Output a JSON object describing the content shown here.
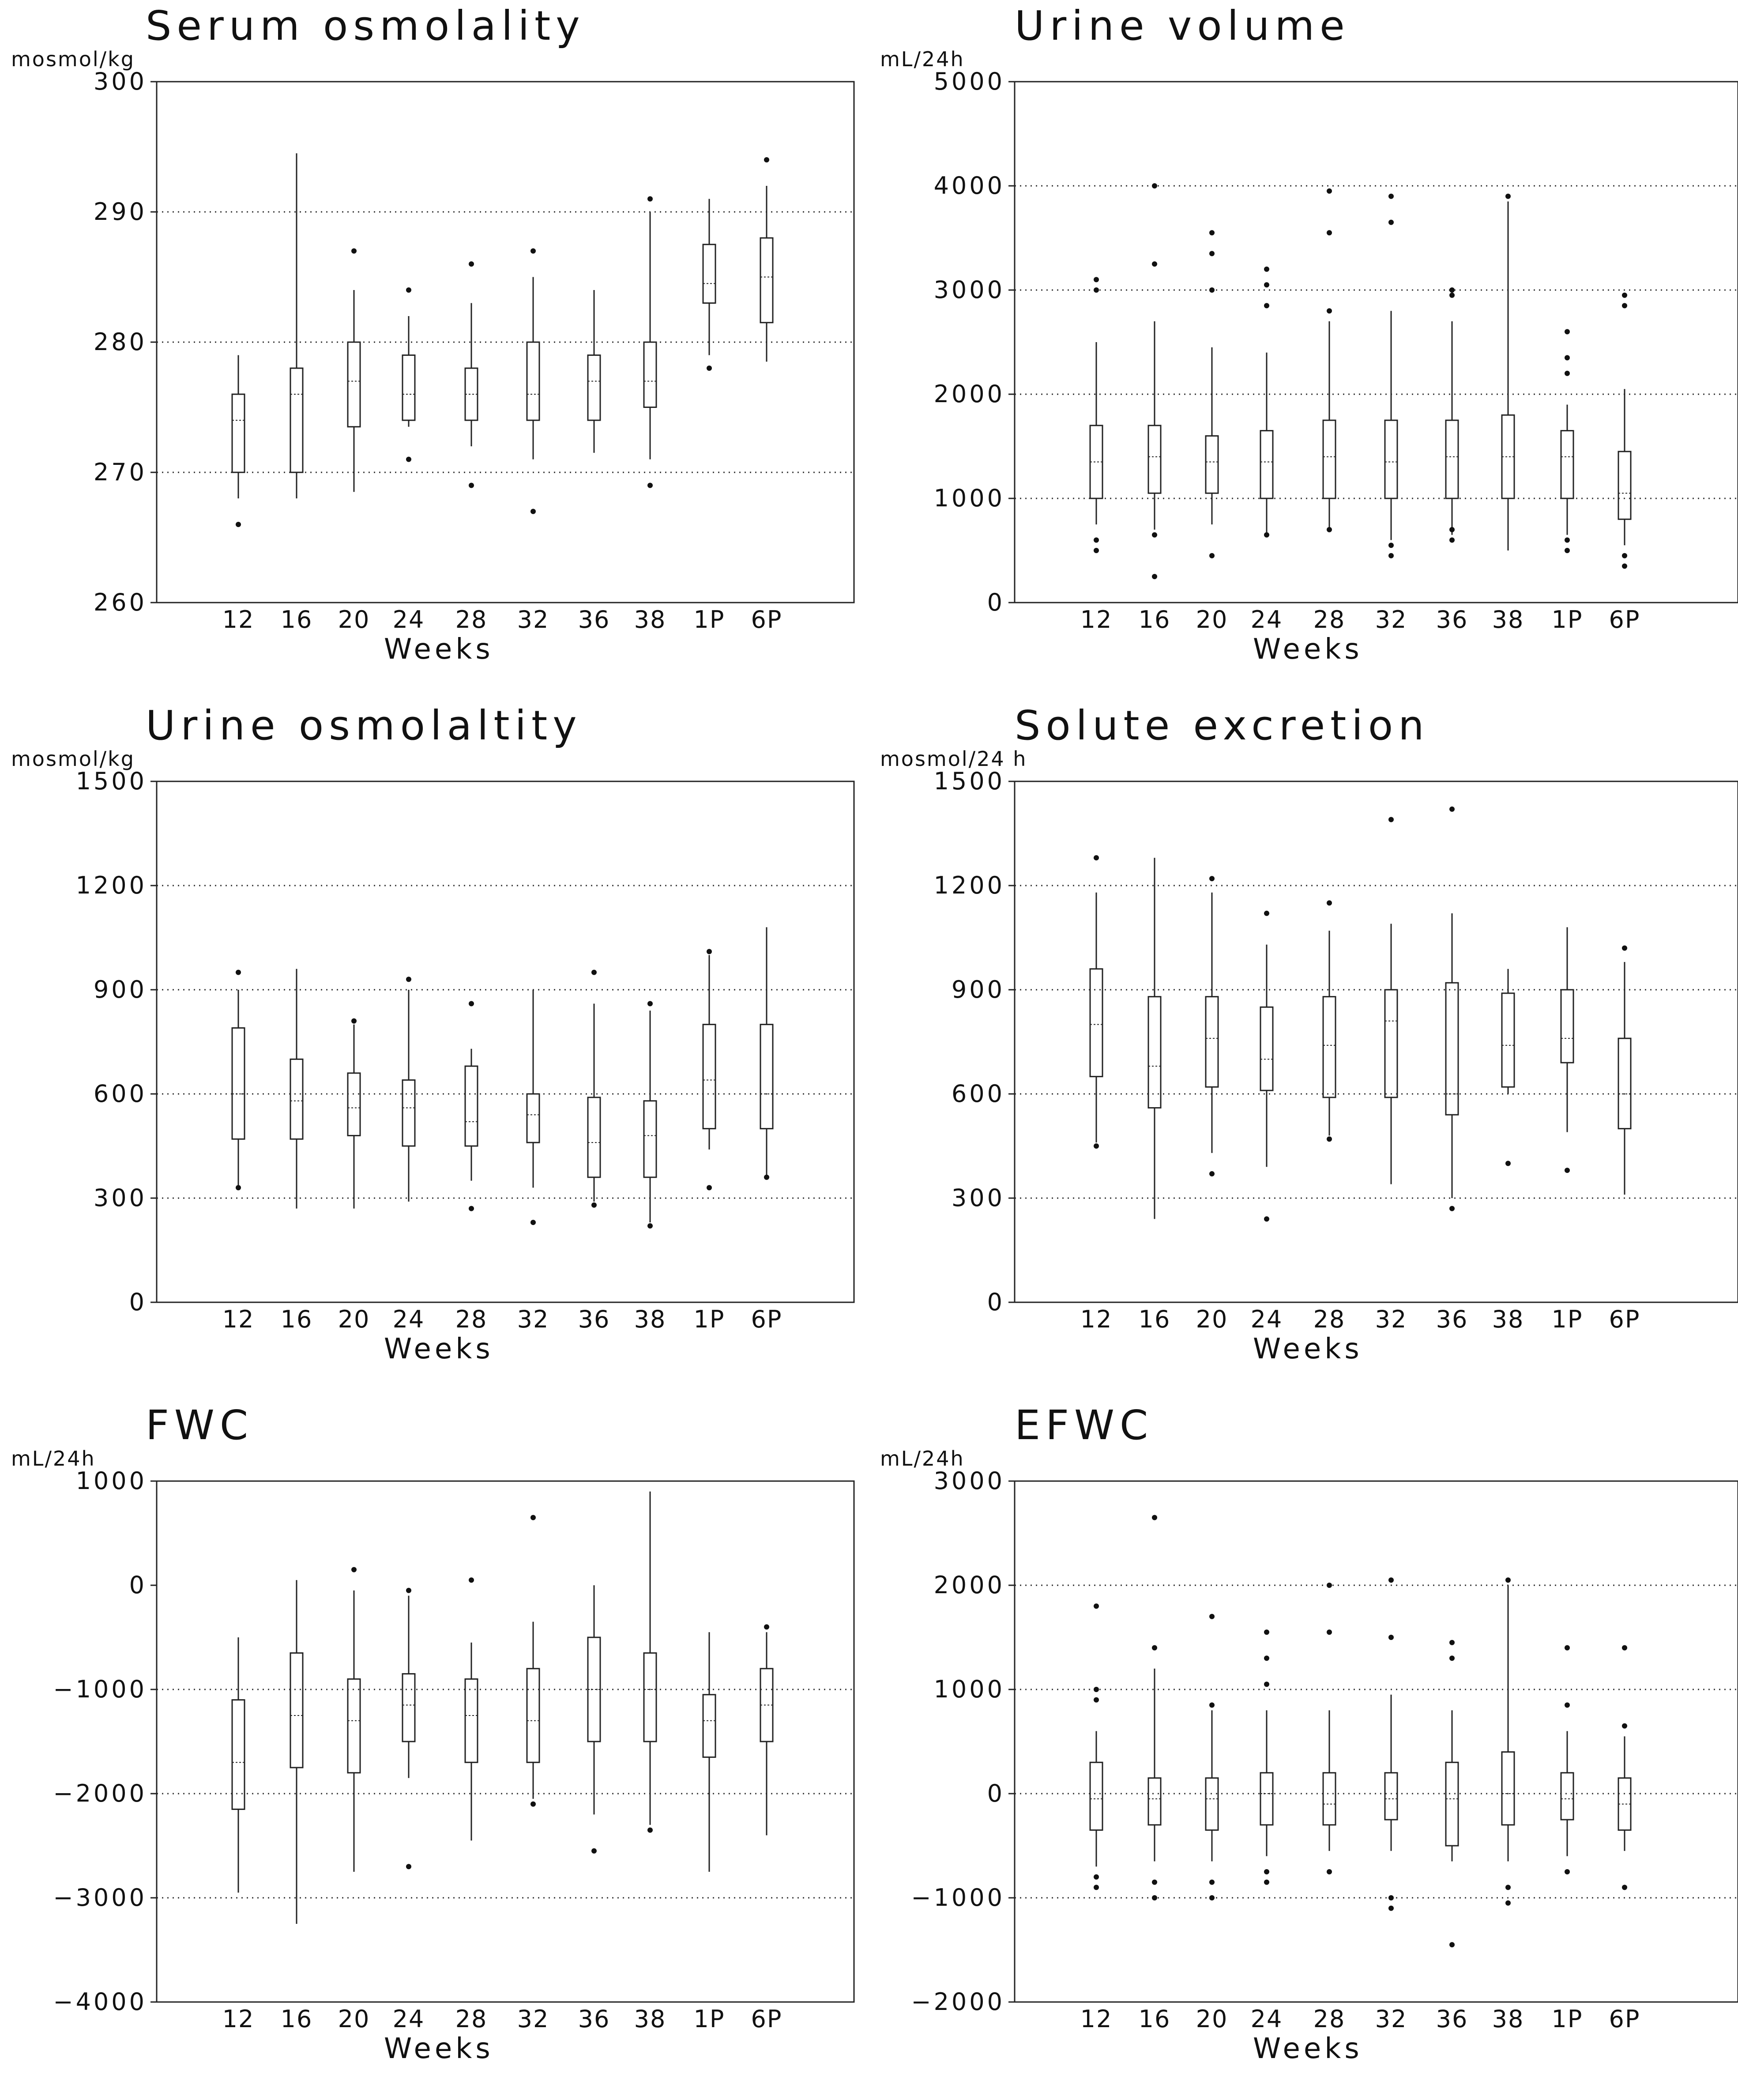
{
  "figure": {
    "x_axis_label": "Weeks",
    "categories": [
      "12",
      "16",
      "20",
      "24",
      "28",
      "32",
      "36",
      "38",
      "1P",
      "6P"
    ]
  },
  "chart_data": [
    {
      "type": "box",
      "title": "Serum osmolality",
      "ylabel": "mosmol/kg",
      "xlabel": "Weeks",
      "categories": [
        "12",
        "16",
        "20",
        "24",
        "28",
        "32",
        "36",
        "38",
        "1P",
        "6P"
      ],
      "ylim": [
        260,
        300
      ],
      "yticks": [
        260,
        270,
        280,
        290,
        300
      ],
      "reference_lines": [
        270,
        280,
        290
      ],
      "boxes": [
        {
          "low": 268,
          "q1": 270,
          "median": 274,
          "q3": 276,
          "high": 279,
          "outliers": [
            266
          ]
        },
        {
          "low": 268,
          "q1": 270,
          "median": 276,
          "q3": 278,
          "high": 294.5,
          "outliers": []
        },
        {
          "low": 268.5,
          "q1": 273.5,
          "median": 277,
          "q3": 280,
          "high": 284,
          "outliers": [
            287
          ]
        },
        {
          "low": 273.5,
          "q1": 274,
          "median": 276,
          "q3": 279,
          "high": 282,
          "outliers": [
            271,
            284
          ]
        },
        {
          "low": 272,
          "q1": 274,
          "median": 276,
          "q3": 278,
          "high": 283,
          "outliers": [
            269,
            286
          ]
        },
        {
          "low": 271,
          "q1": 274,
          "median": 276,
          "q3": 280,
          "high": 285,
          "outliers": [
            267,
            287
          ]
        },
        {
          "low": 271.5,
          "q1": 274,
          "median": 277,
          "q3": 279,
          "high": 284,
          "outliers": []
        },
        {
          "low": 271,
          "q1": 275,
          "median": 277,
          "q3": 280,
          "high": 290,
          "outliers": [
            269,
            291
          ]
        },
        {
          "low": 279,
          "q1": 283,
          "median": 284.5,
          "q3": 287.5,
          "high": 291,
          "outliers": [
            278
          ]
        },
        {
          "low": 278.5,
          "q1": 281.5,
          "median": 285,
          "q3": 288,
          "high": 292,
          "outliers": [
            294
          ]
        }
      ]
    },
    {
      "type": "box",
      "title": "Urine volume",
      "ylabel": "mL/24h",
      "xlabel": "Weeks",
      "categories": [
        "12",
        "16",
        "20",
        "24",
        "28",
        "32",
        "36",
        "38",
        "1P",
        "6P"
      ],
      "ylim": [
        0,
        5000
      ],
      "yticks": [
        0,
        1000,
        2000,
        3000,
        4000,
        5000
      ],
      "reference_lines": [
        1000,
        2000,
        3000,
        4000
      ],
      "boxes": [
        {
          "low": 750,
          "q1": 1000,
          "median": 1350,
          "q3": 1700,
          "high": 2500,
          "outliers": [
            500,
            600,
            3000,
            3100
          ]
        },
        {
          "low": 700,
          "q1": 1050,
          "median": 1400,
          "q3": 1700,
          "high": 2700,
          "outliers": [
            250,
            650,
            3250,
            4000
          ]
        },
        {
          "low": 750,
          "q1": 1050,
          "median": 1350,
          "q3": 1600,
          "high": 2450,
          "outliers": [
            450,
            3000,
            3350,
            3550
          ]
        },
        {
          "low": 650,
          "q1": 1000,
          "median": 1350,
          "q3": 1650,
          "high": 2400,
          "outliers": [
            650,
            2850,
            3050,
            3200
          ]
        },
        {
          "low": 700,
          "q1": 1000,
          "median": 1400,
          "q3": 1750,
          "high": 2700,
          "outliers": [
            700,
            2800,
            3550,
            3950
          ]
        },
        {
          "low": 600,
          "q1": 1000,
          "median": 1350,
          "q3": 1750,
          "high": 2800,
          "outliers": [
            450,
            550,
            3650,
            3900
          ]
        },
        {
          "low": 650,
          "q1": 1000,
          "median": 1400,
          "q3": 1750,
          "high": 2700,
          "outliers": [
            600,
            700,
            2950,
            3000
          ]
        },
        {
          "low": 500,
          "q1": 1000,
          "median": 1400,
          "q3": 1800,
          "high": 3850,
          "outliers": [
            3900
          ]
        },
        {
          "low": 650,
          "q1": 1000,
          "median": 1400,
          "q3": 1650,
          "high": 1900,
          "outliers": [
            500,
            600,
            2200,
            2350,
            2600
          ]
        },
        {
          "low": 550,
          "q1": 800,
          "median": 1050,
          "q3": 1450,
          "high": 2050,
          "outliers": [
            350,
            450,
            2850,
            2950
          ]
        }
      ]
    },
    {
      "type": "box",
      "title": "Urine osmolaltity",
      "ylabel": "mosmol/kg",
      "xlabel": "Weeks",
      "categories": [
        "12",
        "16",
        "20",
        "24",
        "28",
        "32",
        "36",
        "38",
        "1P",
        "6P"
      ],
      "ylim": [
        0,
        1500
      ],
      "yticks": [
        0,
        300,
        600,
        900,
        1200,
        1500
      ],
      "reference_lines": [
        300,
        600,
        900,
        1200
      ],
      "boxes": [
        {
          "low": 330,
          "q1": 470,
          "median": 600,
          "q3": 790,
          "high": 900,
          "outliers": [
            330,
            950
          ]
        },
        {
          "low": 270,
          "q1": 470,
          "median": 580,
          "q3": 700,
          "high": 960,
          "outliers": []
        },
        {
          "low": 270,
          "q1": 480,
          "median": 560,
          "q3": 660,
          "high": 800,
          "outliers": [
            810
          ]
        },
        {
          "low": 290,
          "q1": 450,
          "median": 560,
          "q3": 640,
          "high": 900,
          "outliers": [
            930
          ]
        },
        {
          "low": 350,
          "q1": 450,
          "median": 520,
          "q3": 680,
          "high": 730,
          "outliers": [
            270,
            860
          ]
        },
        {
          "low": 330,
          "q1": 460,
          "median": 540,
          "q3": 600,
          "high": 900,
          "outliers": [
            230
          ]
        },
        {
          "low": 290,
          "q1": 360,
          "median": 460,
          "q3": 590,
          "high": 860,
          "outliers": [
            280,
            950
          ]
        },
        {
          "low": 230,
          "q1": 360,
          "median": 480,
          "q3": 580,
          "high": 840,
          "outliers": [
            220,
            860
          ]
        },
        {
          "low": 440,
          "q1": 500,
          "median": 640,
          "q3": 800,
          "high": 1000,
          "outliers": [
            330,
            1010
          ]
        },
        {
          "low": 360,
          "q1": 500,
          "median": 600,
          "q3": 800,
          "high": 1080,
          "outliers": [
            360
          ]
        }
      ]
    },
    {
      "type": "box",
      "title": "Solute excretion",
      "ylabel": "mosmol/24 h",
      "xlabel": "Weeks",
      "categories": [
        "12",
        "16",
        "20",
        "24",
        "28",
        "32",
        "36",
        "38",
        "1P",
        "6P"
      ],
      "ylim": [
        0,
        1500
      ],
      "yticks": [
        0,
        300,
        600,
        900,
        1200,
        1500
      ],
      "reference_lines": [
        300,
        600,
        900,
        1200
      ],
      "boxes": [
        {
          "low": 460,
          "q1": 650,
          "median": 800,
          "q3": 960,
          "high": 1180,
          "outliers": [
            450,
            1280
          ]
        },
        {
          "low": 240,
          "q1": 560,
          "median": 680,
          "q3": 880,
          "high": 1280,
          "outliers": []
        },
        {
          "low": 430,
          "q1": 620,
          "median": 760,
          "q3": 880,
          "high": 1180,
          "outliers": [
            370,
            1220
          ]
        },
        {
          "low": 390,
          "q1": 610,
          "median": 700,
          "q3": 850,
          "high": 1030,
          "outliers": [
            240,
            1120
          ]
        },
        {
          "low": 480,
          "q1": 590,
          "median": 740,
          "q3": 880,
          "high": 1070,
          "outliers": [
            470,
            1150
          ]
        },
        {
          "low": 340,
          "q1": 590,
          "median": 810,
          "q3": 900,
          "high": 1090,
          "outliers": [
            1390
          ]
        },
        {
          "low": 300,
          "q1": 540,
          "median": 600,
          "q3": 920,
          "high": 1120,
          "outliers": [
            270,
            1420
          ]
        },
        {
          "low": 600,
          "q1": 620,
          "median": 740,
          "q3": 890,
          "high": 960,
          "outliers": [
            400
          ]
        },
        {
          "low": 490,
          "q1": 690,
          "median": 760,
          "q3": 900,
          "high": 1080,
          "outliers": [
            380
          ]
        },
        {
          "low": 310,
          "q1": 500,
          "median": 600,
          "q3": 760,
          "high": 980,
          "outliers": [
            1020
          ]
        }
      ]
    },
    {
      "type": "box",
      "title": "FWC",
      "ylabel": "mL/24h",
      "xlabel": "Weeks",
      "categories": [
        "12",
        "16",
        "20",
        "24",
        "28",
        "32",
        "36",
        "38",
        "1P",
        "6P"
      ],
      "ylim": [
        -4000,
        1000
      ],
      "yticks": [
        -4000,
        -3000,
        -2000,
        -1000,
        0,
        1000
      ],
      "reference_lines": [
        -3000,
        -2000,
        -1000
      ],
      "boxes": [
        {
          "low": -2950,
          "q1": -2150,
          "median": -1700,
          "q3": -1100,
          "high": -500,
          "outliers": []
        },
        {
          "low": -3250,
          "q1": -1750,
          "median": -1250,
          "q3": -650,
          "high": 50,
          "outliers": []
        },
        {
          "low": -2750,
          "q1": -1800,
          "median": -1300,
          "q3": -900,
          "high": -50,
          "outliers": [
            150
          ]
        },
        {
          "low": -1850,
          "q1": -1500,
          "median": -1150,
          "q3": -850,
          "high": -100,
          "outliers": [
            -2700,
            -50
          ]
        },
        {
          "low": -2450,
          "q1": -1700,
          "median": -1250,
          "q3": -900,
          "high": -550,
          "outliers": [
            50
          ]
        },
        {
          "low": -2050,
          "q1": -1700,
          "median": -1300,
          "q3": -800,
          "high": -350,
          "outliers": [
            -2100,
            650
          ]
        },
        {
          "low": -2200,
          "q1": -1500,
          "median": -1000,
          "q3": -500,
          "high": 0,
          "outliers": [
            -2550
          ]
        },
        {
          "low": -2300,
          "q1": -1500,
          "median": -1000,
          "q3": -650,
          "high": 900,
          "outliers": [
            -2350
          ]
        },
        {
          "low": -2750,
          "q1": -1650,
          "median": -1300,
          "q3": -1050,
          "high": -450,
          "outliers": []
        },
        {
          "low": -2400,
          "q1": -1500,
          "median": -1150,
          "q3": -800,
          "high": -450,
          "outliers": [
            -400
          ]
        }
      ]
    },
    {
      "type": "box",
      "title": "EFWC",
      "ylabel": "mL/24h",
      "xlabel": "Weeks",
      "categories": [
        "12",
        "16",
        "20",
        "24",
        "28",
        "32",
        "36",
        "38",
        "1P",
        "6P"
      ],
      "ylim": [
        -2000,
        3000
      ],
      "yticks": [
        -2000,
        -1000,
        0,
        1000,
        2000,
        3000
      ],
      "reference_lines": [
        -1000,
        0,
        1000,
        2000
      ],
      "boxes": [
        {
          "low": -700,
          "q1": -350,
          "median": -50,
          "q3": 300,
          "high": 600,
          "outliers": [
            -900,
            -800,
            900,
            1000,
            1800
          ]
        },
        {
          "low": -650,
          "q1": -300,
          "median": -50,
          "q3": 150,
          "high": 1200,
          "outliers": [
            -1000,
            -850,
            1400,
            2650
          ]
        },
        {
          "low": -650,
          "q1": -350,
          "median": -50,
          "q3": 150,
          "high": 800,
          "outliers": [
            -1000,
            -850,
            850,
            1700
          ]
        },
        {
          "low": -600,
          "q1": -300,
          "median": 0,
          "q3": 200,
          "high": 800,
          "outliers": [
            -850,
            -750,
            1050,
            1300,
            1550
          ]
        },
        {
          "low": -550,
          "q1": -300,
          "median": -100,
          "q3": 200,
          "high": 800,
          "outliers": [
            -750,
            1550,
            2000
          ]
        },
        {
          "low": -550,
          "q1": -250,
          "median": -50,
          "q3": 200,
          "high": 950,
          "outliers": [
            -1100,
            -1000,
            1500,
            2050
          ]
        },
        {
          "low": -650,
          "q1": -500,
          "median": -50,
          "q3": 300,
          "high": 800,
          "outliers": [
            -1450,
            1300,
            1450
          ]
        },
        {
          "low": -650,
          "q1": -300,
          "median": 0,
          "q3": 400,
          "high": 2000,
          "outliers": [
            -1050,
            -900,
            2050
          ]
        },
        {
          "low": -600,
          "q1": -250,
          "median": -50,
          "q3": 200,
          "high": 600,
          "outliers": [
            -750,
            850,
            1400
          ]
        },
        {
          "low": -550,
          "q1": -350,
          "median": -100,
          "q3": 150,
          "high": 550,
          "outliers": [
            -900,
            650,
            1400
          ]
        }
      ]
    }
  ]
}
